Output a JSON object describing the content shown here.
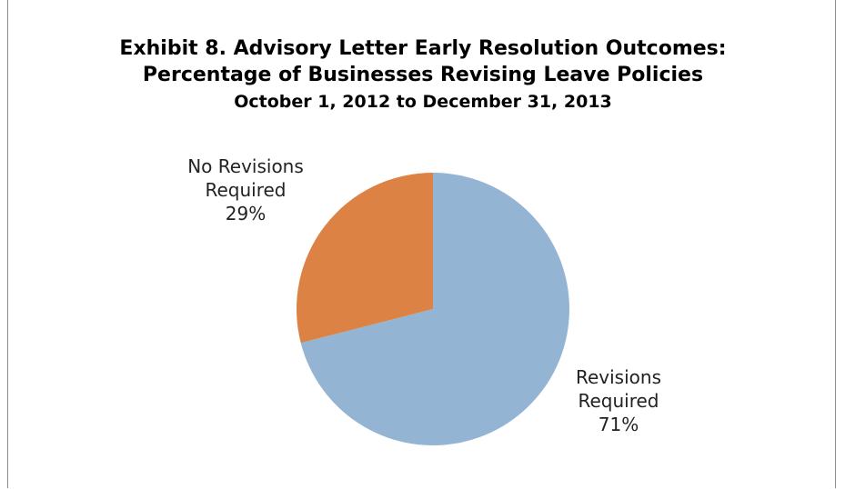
{
  "chart_data": {
    "type": "pie",
    "title": [
      "Exhibit 8. Advisory Letter Early Resolution Outcomes:",
      "Percentage of Businesses Revising Leave Policies"
    ],
    "subtitle": "October 1, 2012 to December 31, 2013",
    "categories": [
      "Revisions Required",
      "No Revisions Required"
    ],
    "values": [
      71,
      29
    ],
    "value_labels": [
      "71%",
      "29%"
    ],
    "colors": [
      "#93b5d3",
      "#dd8245"
    ]
  }
}
